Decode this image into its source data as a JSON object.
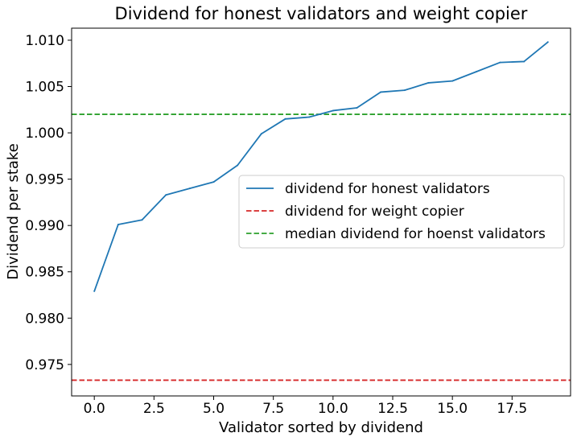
{
  "chart_data": {
    "type": "line",
    "title": "Dividend for honest validators and weight copier",
    "xlabel": "Validator sorted by dividend",
    "ylabel": "Dividend per stake",
    "xlim": [
      -0.95,
      19.95
    ],
    "ylim": [
      0.9716,
      1.0113
    ],
    "x_ticks": [
      0.0,
      2.5,
      5.0,
      7.5,
      10.0,
      12.5,
      15.0,
      17.5
    ],
    "x_tick_labels": [
      "0.0",
      "2.5",
      "5.0",
      "7.5",
      "10.0",
      "12.5",
      "15.0",
      "17.5"
    ],
    "y_ticks": [
      0.975,
      0.98,
      0.985,
      0.99,
      0.995,
      1.0,
      1.005,
      1.01
    ],
    "y_tick_labels": [
      "0.975",
      "0.980",
      "0.985",
      "0.990",
      "0.995",
      "1.000",
      "1.005",
      "1.010"
    ],
    "grid": false,
    "legend_position": "center-right",
    "series": [
      {
        "name": "dividend for honest validators",
        "style": "solid",
        "color": "#1f77b4",
        "x": [
          0,
          1,
          2,
          3,
          4,
          5,
          6,
          7,
          8,
          9,
          10,
          11,
          12,
          13,
          14,
          15,
          16,
          17,
          18,
          19
        ],
        "y": [
          0.9829,
          0.9901,
          0.9906,
          0.9933,
          0.994,
          0.9947,
          0.9965,
          0.9999,
          1.0015,
          1.0017,
          1.0024,
          1.0027,
          1.0044,
          1.0046,
          1.0054,
          1.0056,
          1.0066,
          1.0076,
          1.0077,
          1.0098
        ]
      }
    ],
    "hlines": [
      {
        "name": "dividend for weight copier",
        "y": 0.9733,
        "color": "#d62728",
        "style": "dashed"
      },
      {
        "name": "median dividend for hoenst validators",
        "y": 1.002,
        "color": "#2ca02c",
        "style": "dashed"
      }
    ]
  }
}
